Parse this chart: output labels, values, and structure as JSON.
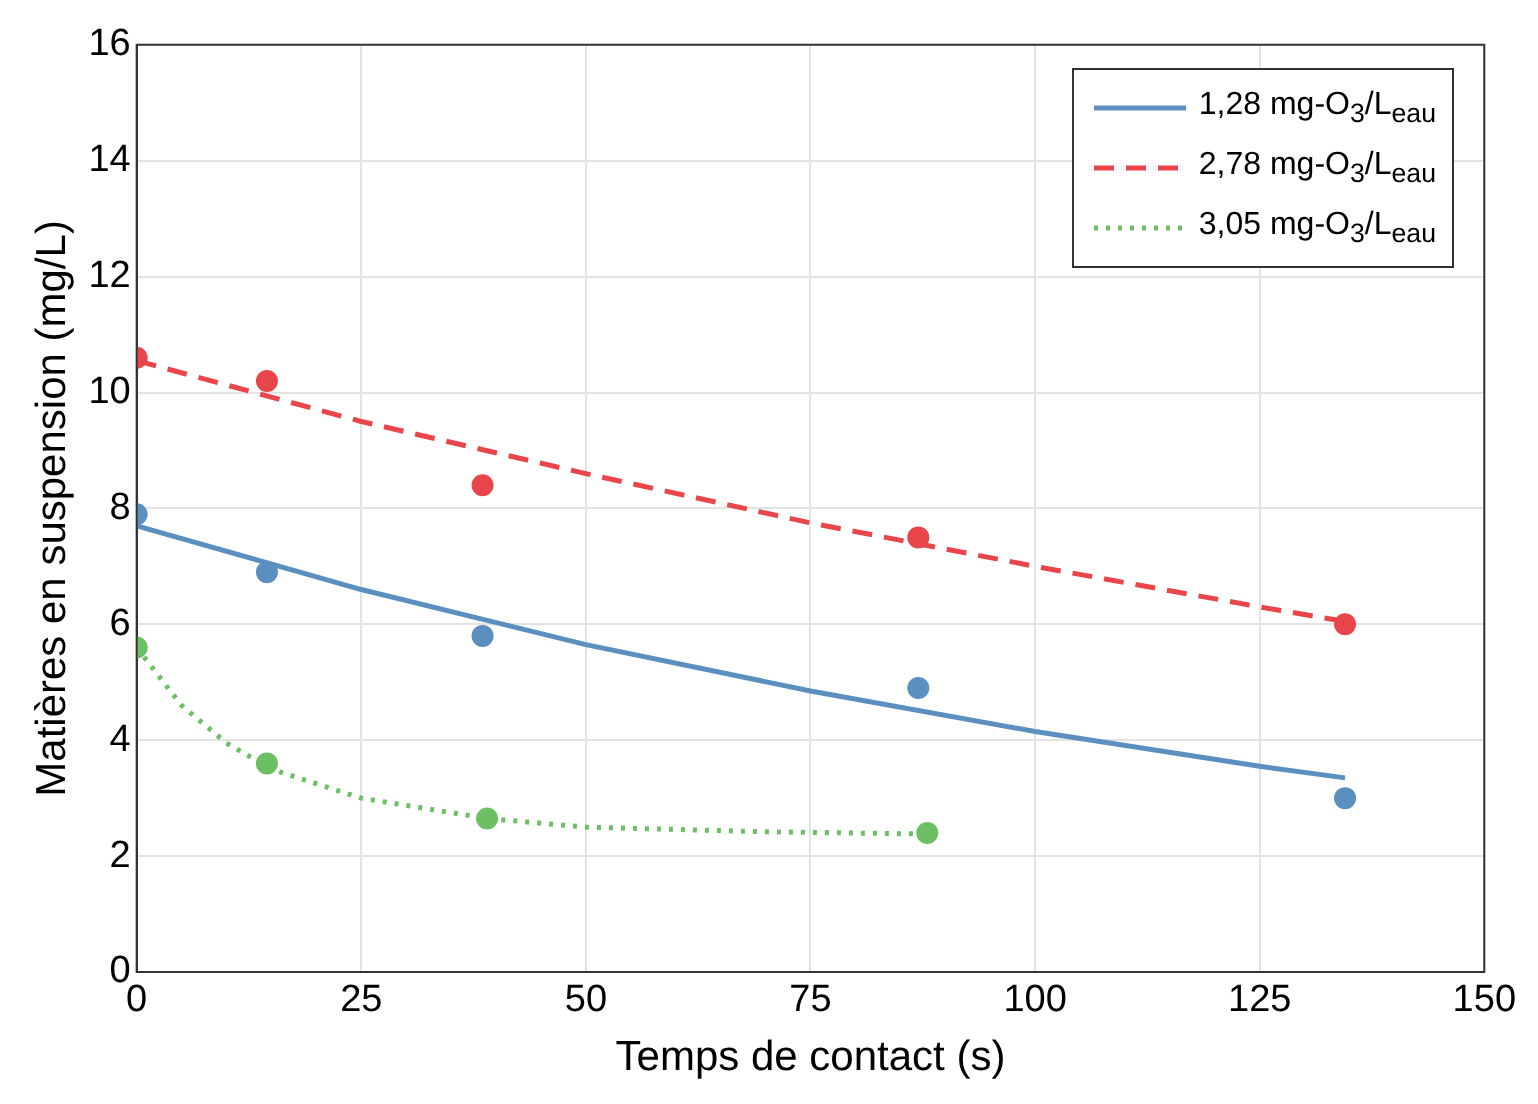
{
  "chart_data": {
    "type": "line",
    "xlabel": "Temps de contact (s)",
    "ylabel": "Matières en suspension (mg/L)",
    "xlim": [
      0,
      150
    ],
    "xticks": [
      0,
      25,
      50,
      75,
      100,
      125,
      150
    ],
    "ylim": [
      0,
      16
    ],
    "yticks": [
      0,
      2,
      4,
      6,
      8,
      10,
      12,
      14,
      16
    ],
    "grid": true,
    "legend": "top right",
    "series": [
      {
        "name": "1,28 mg-O$_{3}$/L$_{eau}$",
        "color": "#5b8fc0",
        "line_style": "solid",
        "marker": "none",
        "x": [
          0,
          25,
          50,
          75,
          100,
          125,
          134.5
        ],
        "values": [
          7.7,
          6.6,
          5.65,
          4.85,
          4.15,
          3.55,
          3.35
        ]
      },
      {
        "name": "2,78 mg-O$_{3}$/L$_{eau}$",
        "color": "#e8464b",
        "line_style": "dashed",
        "marker": "none",
        "x": [
          0,
          25,
          50,
          75,
          100,
          125,
          134.5
        ],
        "values": [
          10.55,
          9.5,
          8.6,
          7.75,
          7.0,
          6.3,
          6.05
        ]
      },
      {
        "name": "3,05 mg-O$_{3}$/L$_{eau}$",
        "color": "#6cc063",
        "line_style": "dotted",
        "marker": "none",
        "x": [
          0,
          5,
          10,
          15,
          25,
          39,
          50,
          70,
          88
        ],
        "values": [
          5.6,
          4.6,
          3.95,
          3.5,
          3.0,
          2.65,
          2.5,
          2.42,
          2.38
        ]
      },
      {
        "type": "scatter",
        "color": "#5b8fc0",
        "marker": "circle",
        "x": [
          0,
          14.5,
          38.5,
          87,
          134.5
        ],
        "values": [
          7.9,
          6.9,
          5.8,
          4.9,
          3.0
        ]
      },
      {
        "type": "scatter",
        "color": "#e8464b",
        "marker": "circle",
        "x": [
          0,
          14.5,
          38.5,
          87,
          134.5
        ],
        "values": [
          10.6,
          10.2,
          8.4,
          7.5,
          6.0
        ]
      },
      {
        "type": "scatter",
        "color": "#6cc063",
        "marker": "circle",
        "x": [
          0,
          14.5,
          39,
          88
        ],
        "values": [
          5.6,
          3.6,
          2.65,
          2.4
        ]
      }
    ]
  }
}
